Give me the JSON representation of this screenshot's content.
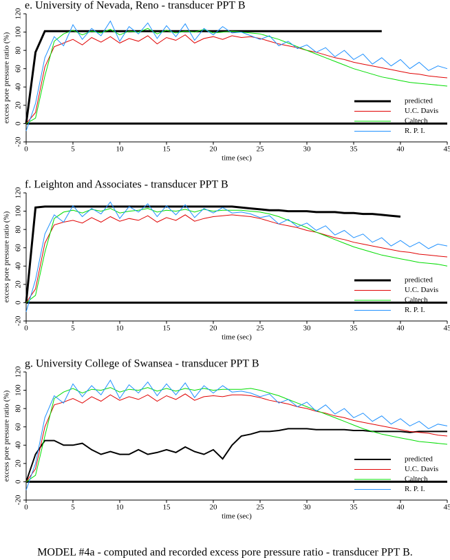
{
  "chart_data": [
    {
      "type": "line",
      "title": "e. University of Nevada, Reno - transducer PPT B",
      "xlabel": "time (sec)",
      "ylabel": "excess pore pressure ratio  (%)",
      "xlim": [
        0,
        45
      ],
      "xticks": [
        0,
        5,
        10,
        15,
        20,
        25,
        30,
        35,
        40,
        45
      ],
      "ylim": [
        -20,
        120
      ],
      "yticks": [
        -20,
        0,
        20,
        40,
        60,
        80,
        100,
        120
      ],
      "hline": 0,
      "legend": "lower right",
      "x": [
        0,
        1,
        2,
        3,
        4,
        5,
        6,
        7,
        8,
        9,
        10,
        11,
        12,
        13,
        14,
        15,
        16,
        17,
        18,
        19,
        20,
        21,
        22,
        23,
        24,
        25,
        26,
        27,
        28,
        29,
        30,
        31,
        32,
        33,
        34,
        35,
        36,
        37,
        38,
        39,
        40,
        41,
        42,
        43,
        44,
        45
      ],
      "series": [
        {
          "name": "predicted",
          "color": "#000000",
          "width": 3,
          "values": [
            0,
            78,
            101,
            101,
            101,
            101,
            101,
            101,
            101,
            101,
            101,
            101,
            101,
            101,
            101,
            101,
            101,
            101,
            101,
            101,
            101,
            101,
            101,
            101,
            101,
            101,
            101,
            101,
            101,
            101,
            101,
            101,
            101,
            101,
            101,
            101,
            101,
            101,
            101,
            null,
            null,
            null,
            null,
            null,
            null,
            null
          ]
        },
        {
          "name": "U.C. Davis",
          "color": "#e00000",
          "width": 1,
          "values": [
            0,
            12,
            62,
            84,
            88,
            92,
            86,
            94,
            89,
            95,
            88,
            93,
            90,
            96,
            87,
            94,
            91,
            97,
            88,
            93,
            95,
            92,
            96,
            94,
            95,
            93,
            90,
            87,
            85,
            83,
            80,
            78,
            75,
            72,
            70,
            67,
            65,
            63,
            61,
            59,
            57,
            55,
            54,
            52,
            51,
            50
          ]
        },
        {
          "name": "Caltech",
          "color": "#00dd00",
          "width": 1,
          "values": [
            0,
            6,
            52,
            90,
            98,
            102,
            97,
            101,
            99,
            103,
            97,
            101,
            100,
            104,
            98,
            102,
            99,
            101,
            100,
            103,
            99,
            100,
            101,
            100,
            99,
            98,
            95,
            92,
            88,
            84,
            80,
            76,
            72,
            68,
            64,
            60,
            57,
            54,
            51,
            49,
            47,
            45,
            44,
            43,
            42,
            41
          ]
        },
        {
          "name": "R. P. I.",
          "color": "#1e90ff",
          "width": 1,
          "values": [
            -8,
            22,
            72,
            95,
            85,
            108,
            92,
            104,
            96,
            112,
            90,
            106,
            98,
            110,
            93,
            107,
            95,
            109,
            91,
            104,
            97,
            106,
            99,
            100,
            96,
            92,
            96,
            85,
            90,
            82,
            86,
            78,
            83,
            73,
            80,
            70,
            76,
            65,
            72,
            63,
            70,
            60,
            67,
            58,
            63,
            60
          ]
        }
      ]
    },
    {
      "type": "line",
      "title": "f. Leighton and Associates - transducer PPT B",
      "xlabel": "time (sec)",
      "ylabel": "excess pore pressure ratio  (%)",
      "xlim": [
        0,
        45
      ],
      "xticks": [
        0,
        5,
        10,
        15,
        20,
        25,
        30,
        35,
        40,
        45
      ],
      "ylim": [
        -20,
        120
      ],
      "yticks": [
        -20,
        0,
        20,
        40,
        60,
        80,
        100,
        120
      ],
      "hline": 0,
      "legend": "lower right",
      "x": [
        0,
        1,
        2,
        3,
        4,
        5,
        6,
        7,
        8,
        9,
        10,
        11,
        12,
        13,
        14,
        15,
        16,
        17,
        18,
        19,
        20,
        21,
        22,
        23,
        24,
        25,
        26,
        27,
        28,
        29,
        30,
        31,
        32,
        33,
        34,
        35,
        36,
        37,
        38,
        39,
        40,
        41,
        42,
        43,
        44,
        45
      ],
      "series": [
        {
          "name": "predicted",
          "color": "#000000",
          "width": 3,
          "values": [
            0,
            104,
            105,
            105,
            105,
            105,
            105,
            105,
            105,
            105,
            105,
            105,
            105,
            105,
            105,
            105,
            105,
            105,
            105,
            105,
            105,
            105,
            105,
            104,
            103,
            102,
            101,
            101,
            100,
            100,
            100,
            99,
            99,
            99,
            98,
            98,
            97,
            97,
            96,
            95,
            94,
            null,
            null,
            null,
            null,
            null
          ]
        },
        {
          "name": "U.C. Davis",
          "color": "#e00000",
          "width": 1,
          "values": [
            0,
            15,
            65,
            85,
            88,
            90,
            87,
            93,
            88,
            94,
            89,
            92,
            90,
            95,
            88,
            93,
            90,
            96,
            89,
            92,
            94,
            95,
            96,
            95,
            94,
            92,
            89,
            86,
            84,
            82,
            79,
            77,
            74,
            71,
            69,
            66,
            64,
            62,
            60,
            58,
            56,
            55,
            53,
            52,
            51,
            50
          ]
        },
        {
          "name": "Caltech",
          "color": "#00dd00",
          "width": 1,
          "values": [
            0,
            8,
            55,
            92,
            99,
            101,
            98,
            102,
            100,
            103,
            98,
            100,
            101,
            103,
            99,
            101,
            100,
            102,
            99,
            102,
            100,
            101,
            101,
            101,
            100,
            99,
            97,
            94,
            90,
            86,
            82,
            77,
            73,
            69,
            65,
            61,
            58,
            55,
            52,
            50,
            48,
            46,
            44,
            43,
            42,
            40
          ]
        },
        {
          "name": "R. P. I.",
          "color": "#1e90ff",
          "width": 1,
          "values": [
            -10,
            25,
            75,
            96,
            88,
            106,
            94,
            103,
            97,
            110,
            92,
            105,
            99,
            108,
            94,
            106,
            96,
            107,
            93,
            103,
            98,
            104,
            98,
            99,
            97,
            93,
            95,
            86,
            91,
            83,
            87,
            79,
            84,
            74,
            79,
            71,
            75,
            66,
            71,
            62,
            68,
            61,
            66,
            59,
            64,
            62
          ]
        }
      ]
    },
    {
      "type": "line",
      "title": "g. University College of Swansea - transducer PPT B",
      "xlabel": "time (sec)",
      "ylabel": "excess pore pressure ratio  (%)",
      "xlim": [
        0,
        45
      ],
      "xticks": [
        0,
        5,
        10,
        15,
        20,
        25,
        30,
        35,
        40,
        45
      ],
      "ylim": [
        -20,
        120
      ],
      "yticks": [
        -20,
        0,
        20,
        40,
        60,
        80,
        100,
        120
      ],
      "hline": 0,
      "legend": "lower right",
      "x": [
        0,
        1,
        2,
        3,
        4,
        5,
        6,
        7,
        8,
        9,
        10,
        11,
        12,
        13,
        14,
        15,
        16,
        17,
        18,
        19,
        20,
        21,
        22,
        23,
        24,
        25,
        26,
        27,
        28,
        29,
        30,
        31,
        32,
        33,
        34,
        35,
        36,
        37,
        38,
        39,
        40,
        41,
        42,
        43,
        44,
        45
      ],
      "series": [
        {
          "name": "predicted",
          "color": "#000000",
          "width": 2,
          "values": [
            0,
            30,
            45,
            45,
            40,
            40,
            42,
            35,
            30,
            33,
            30,
            30,
            35,
            30,
            32,
            35,
            32,
            38,
            33,
            30,
            35,
            25,
            40,
            50,
            52,
            55,
            55,
            56,
            58,
            58,
            58,
            57,
            57,
            57,
            57,
            56,
            56,
            55,
            55,
            55,
            55,
            54,
            55,
            55,
            55,
            55
          ]
        },
        {
          "name": "U.C. Davis",
          "color": "#e00000",
          "width": 1,
          "values": [
            0,
            14,
            60,
            84,
            87,
            91,
            86,
            93,
            88,
            95,
            89,
            93,
            90,
            95,
            88,
            94,
            90,
            96,
            89,
            93,
            94,
            93,
            95,
            95,
            94,
            92,
            89,
            87,
            85,
            82,
            80,
            77,
            75,
            72,
            70,
            67,
            65,
            63,
            61,
            59,
            57,
            55,
            54,
            53,
            51,
            50
          ]
        },
        {
          "name": "Caltech",
          "color": "#00dd00",
          "width": 1,
          "values": [
            0,
            7,
            50,
            91,
            98,
            102,
            97,
            101,
            100,
            103,
            98,
            101,
            100,
            103,
            99,
            102,
            99,
            102,
            100,
            102,
            100,
            101,
            101,
            101,
            102,
            100,
            97,
            94,
            90,
            86,
            82,
            78,
            74,
            70,
            66,
            62,
            58,
            55,
            52,
            50,
            48,
            46,
            44,
            43,
            42,
            41
          ]
        },
        {
          "name": "R. P. I.",
          "color": "#1e90ff",
          "width": 1,
          "values": [
            -9,
            20,
            70,
            94,
            86,
            107,
            93,
            105,
            95,
            111,
            91,
            106,
            97,
            109,
            94,
            107,
            95,
            108,
            92,
            105,
            97,
            105,
            98,
            99,
            97,
            93,
            96,
            86,
            90,
            82,
            87,
            77,
            84,
            74,
            80,
            70,
            75,
            66,
            72,
            63,
            69,
            61,
            66,
            58,
            63,
            61
          ]
        }
      ]
    }
  ],
  "caption": "MODEL #4a - computed and recorded excess pore pressure ratio - transducer PPT B."
}
